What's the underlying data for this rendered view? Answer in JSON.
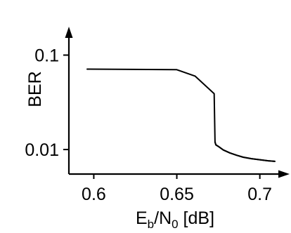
{
  "chart_data": {
    "type": "line",
    "title": "",
    "xlabel": {
      "E": "E",
      "b": "b",
      "slash": "/N",
      "zero": "0",
      "unit": " [dB]"
    },
    "ylabel": "BER",
    "x_ticks": [
      {
        "value": 0.6,
        "label": "0.6"
      },
      {
        "value": 0.65,
        "label": "0.65"
      },
      {
        "value": 0.7,
        "label": "0.7"
      }
    ],
    "y_ticks": [
      {
        "value": 0.1,
        "label": "0.1"
      },
      {
        "value": 0.01,
        "label": "0.01"
      }
    ],
    "y_scale": "log",
    "xlim": [
      0.585,
      0.712
    ],
    "ylim": [
      0.0055,
      0.2
    ],
    "grid": false,
    "series": [
      {
        "x": [
          0.596,
          0.65,
          0.661,
          0.6725,
          0.673,
          0.6735,
          0.675,
          0.678,
          0.682,
          0.686,
          0.69,
          0.695,
          0.7,
          0.705,
          0.709
        ],
        "y": [
          0.071,
          0.07,
          0.06,
          0.039,
          0.012,
          0.0112,
          0.0108,
          0.0099,
          0.0092,
          0.0087,
          0.0083,
          0.008,
          0.0078,
          0.0076,
          0.0075
        ]
      }
    ]
  }
}
